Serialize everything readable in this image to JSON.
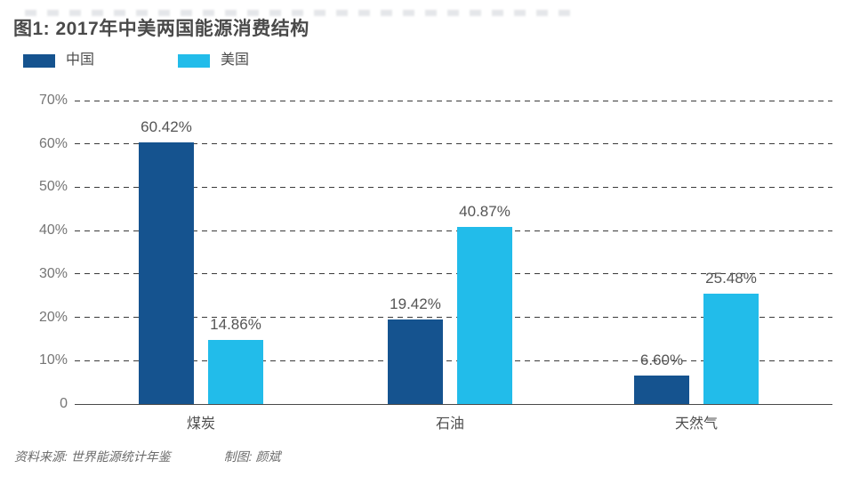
{
  "chart_data": {
    "type": "bar",
    "title": "图1: 2017年中美两国能源消费结构",
    "categories": [
      "煤炭",
      "石油",
      "天然气"
    ],
    "series": [
      {
        "name": "中国",
        "color": "#15538f",
        "values": [
          60.42,
          19.42,
          6.6
        ]
      },
      {
        "name": "美国",
        "color": "#22bcea",
        "values": [
          14.86,
          40.87,
          25.48
        ]
      }
    ],
    "value_labels": [
      [
        "60.42%",
        "19.42%",
        "6.60%"
      ],
      [
        "14.86%",
        "40.87%",
        "25.48%"
      ]
    ],
    "y_tick_labels": [
      "70%",
      "60%",
      "50%",
      "40%",
      "30%",
      "20%",
      "10%",
      "0"
    ],
    "ylim": [
      0,
      70
    ],
    "grid": "dashed-horizontal",
    "legend_position": "top-left",
    "bar_label_position": "above"
  },
  "footer": {
    "source": "资料来源: 世界能源统计年鉴",
    "credit": "制图: 颜斌"
  }
}
